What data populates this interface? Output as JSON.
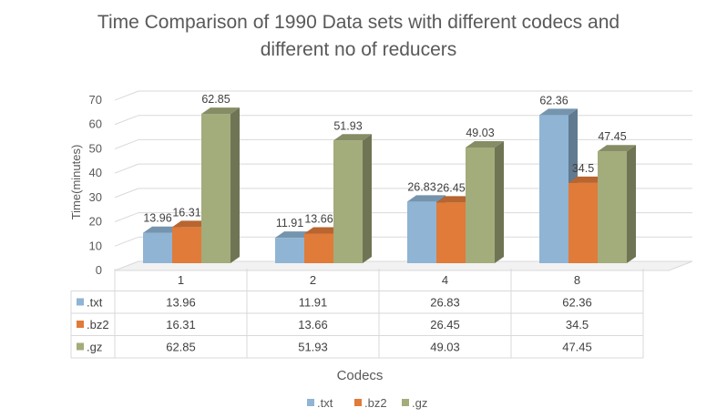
{
  "chart_data": {
    "type": "bar",
    "title_line1": "Time Comparison of 1990 Data sets with different codecs and",
    "title_line2": "different no of reducers",
    "xlabel": "Codecs",
    "ylabel": "Time(minutes)",
    "ylim": [
      0,
      70
    ],
    "yticks": [
      0,
      10,
      20,
      30,
      40,
      50,
      60,
      70
    ],
    "categories": [
      "1",
      "2",
      "4",
      "8"
    ],
    "series": [
      {
        "name": ".txt",
        "color": "#8FB4D4",
        "values": [
          13.96,
          11.91,
          26.83,
          62.36
        ]
      },
      {
        "name": ".bz2",
        "color": "#E07B3A",
        "values": [
          16.31,
          13.66,
          26.45,
          34.5
        ]
      },
      {
        "name": ".gz",
        "color": "#A3AC7B",
        "values": [
          62.85,
          51.93,
          49.03,
          47.45
        ]
      }
    ],
    "grid": true,
    "legend": "bottom",
    "data_table": true
  }
}
